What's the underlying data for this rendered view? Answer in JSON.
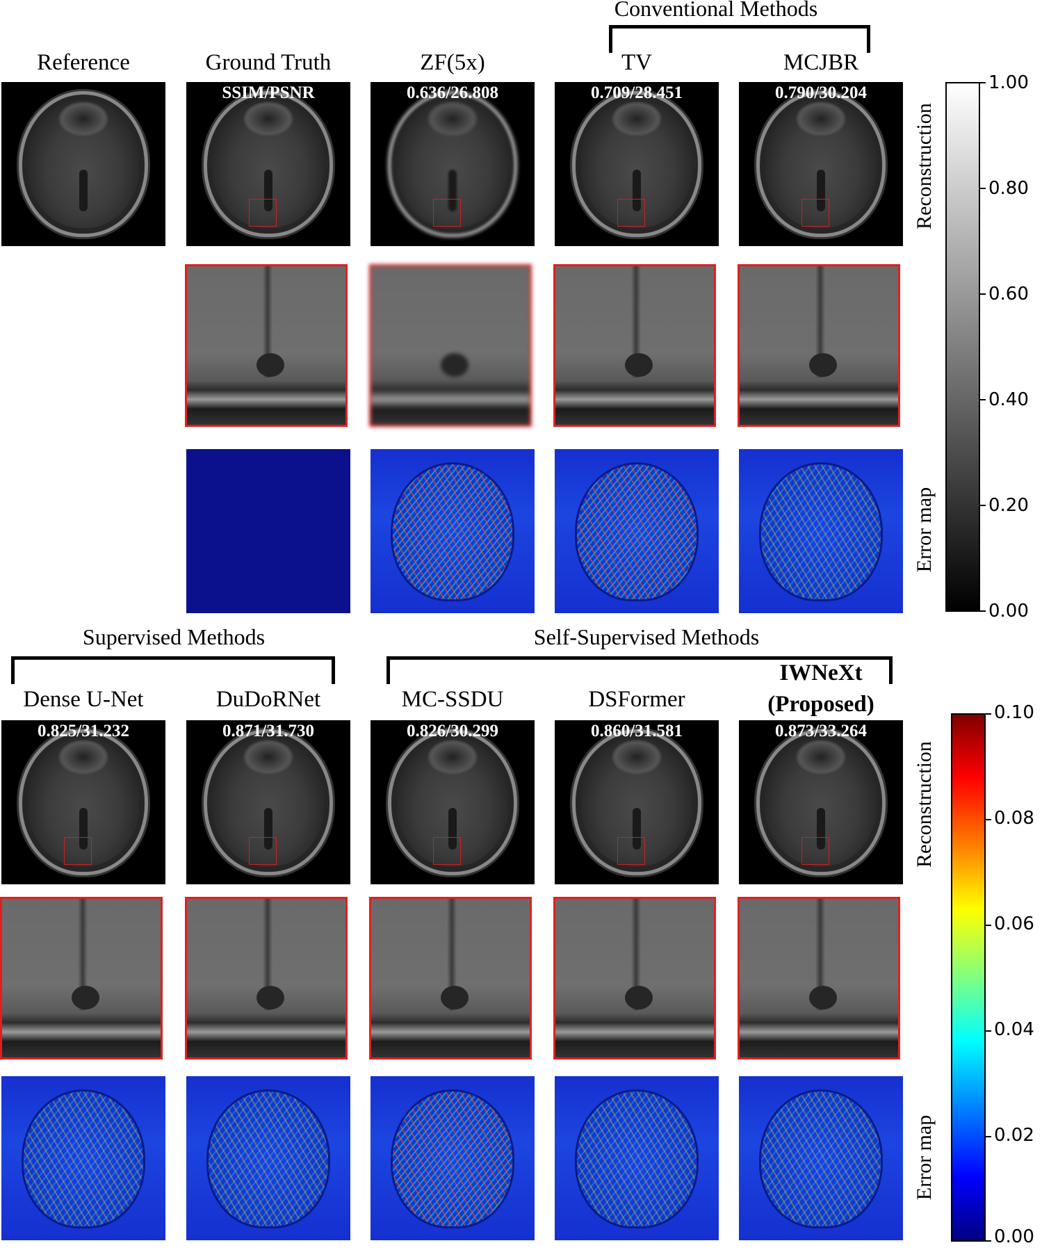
{
  "groups": {
    "conventional": "Conventional Methods",
    "supervised": "Supervised Methods",
    "self_supervised": "Self-Supervised Methods"
  },
  "top_row": {
    "titles": [
      "Reference",
      "Ground Truth",
      "ZF(5x)",
      "TV",
      "MCJBR"
    ],
    "metrics": [
      "",
      "SSIM/PSNR",
      "0.636/26.808",
      "0.709/28.451",
      "0.790/30.204"
    ]
  },
  "bottom_row": {
    "titles": [
      "Dense U-Net",
      "DuDoRNet",
      "MC-SSDU",
      "DSFormer"
    ],
    "proposed_title_line1": "IWNeXt",
    "proposed_title_line2": "(Proposed)",
    "metrics": [
      "0.825/31.232",
      "0.871/31.730",
      "0.826/30.299",
      "0.860/31.581",
      "0.873/33.264"
    ]
  },
  "side_labels": {
    "reconstruction": "Reconstruction",
    "error_map": "Error map"
  },
  "colorbars": {
    "gray": {
      "colormap": "gray",
      "ticks": [
        "1.00",
        "0.80",
        "0.60",
        "0.40",
        "0.20",
        "0.00"
      ]
    },
    "jet": {
      "colormap": "jet",
      "ticks": [
        "0.10",
        "0.08",
        "0.06",
        "0.04",
        "0.02",
        "0.00"
      ]
    }
  }
}
